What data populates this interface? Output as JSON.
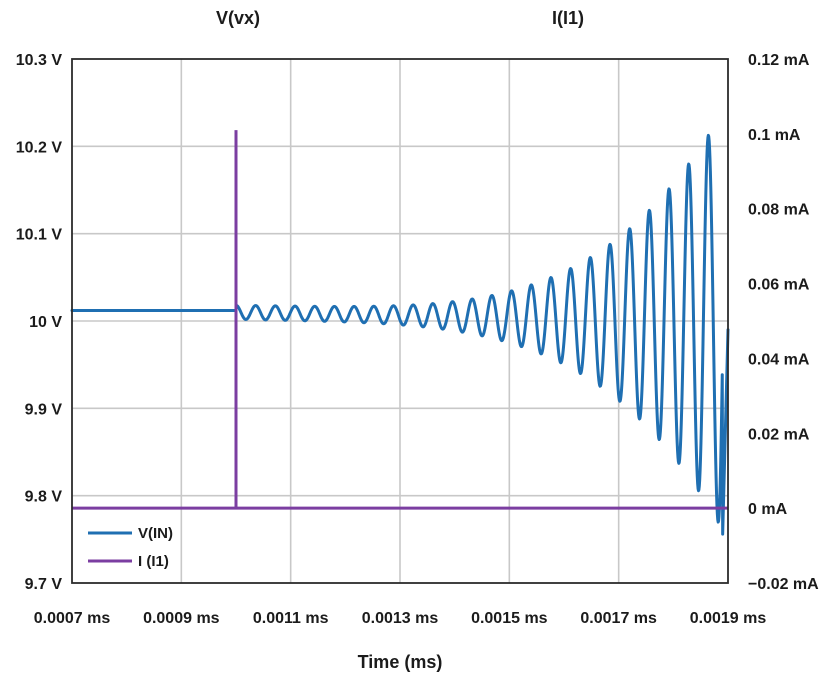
{
  "chart_data": {
    "type": "line",
    "left_title": "V(vx)",
    "right_title": "I(I1)",
    "xlabel": "Time (ms)",
    "x_tick_labels": [
      "0.0007 ms",
      "0.0009 ms",
      "0.0011 ms",
      "0.0013 ms",
      "0.0015 ms",
      "0.0017 ms",
      "0.0019 ms"
    ],
    "y_left_tick_labels": [
      "10.3 V",
      "10.2 V",
      "10.1 V",
      "10 V",
      "9.9 V",
      "9.8 V",
      "9.7 V"
    ],
    "y_right_tick_labels": [
      "0.12 mA",
      "0.1 mA",
      "0.08 mA",
      "0.06 mA",
      "0.04 mA",
      "0.02 mA",
      "0 mA",
      "−0.02 mA"
    ],
    "xlim": [
      0.0007,
      0.0019
    ],
    "y_left_lim": [
      9.7,
      10.3
    ],
    "y_right_lim": [
      -0.02,
      0.12
    ],
    "legend": [
      {
        "name": "V(IN)",
        "color": "#1f6fb2"
      },
      {
        "name": "I (I1)",
        "color": "#7b3ea1"
      }
    ],
    "series": [
      {
        "name": "V(IN)",
        "color": "#1f6fb2",
        "axis": "left",
        "unit": "V",
        "x": [
          0.0007,
          0.001,
          0.001,
          0.0010125,
          0.00104,
          0.00109,
          0.00114,
          0.00119,
          0.00124,
          0.00129,
          0.00134,
          0.00139,
          0.00144,
          0.00149,
          0.00154,
          0.00159,
          0.00164,
          0.00169,
          0.00174,
          0.00179,
          0.00184,
          0.00187,
          0.001885,
          0.001895,
          0.0019
        ],
        "y": [
          10.012,
          10.012,
          10.022,
          10.02,
          10.01,
          10.005,
          10.0,
          9.997,
          9.996,
          9.994,
          9.993,
          9.99,
          9.98,
          9.97,
          9.955,
          9.94,
          9.915,
          9.9,
          9.87,
          9.84,
          9.82,
          10.26,
          9.75,
          9.85,
          9.99
        ],
        "description_values": "Flat at about 10.012 V until about 0.001 ms, then a sinusoidal oscillation around ~10.0 V with growing amplitude; peaks reach about 10.26 V near 0.00187 ms and troughs reach about 9.75 V near 0.001895 ms."
      },
      {
        "name": "I (I1)",
        "color": "#7b3ea1",
        "axis": "right",
        "unit": "mA",
        "x": [
          0.0007,
          0.001,
          0.001,
          0.001,
          0.0019
        ],
        "y": [
          0.0,
          0.0,
          0.101,
          0.0,
          0.0
        ]
      }
    ],
    "grid": true,
    "legend_position": "bottom-left"
  }
}
